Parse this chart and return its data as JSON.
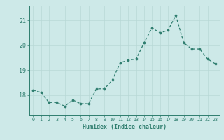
{
  "x": [
    0,
    1,
    2,
    3,
    4,
    5,
    6,
    7,
    8,
    9,
    10,
    11,
    12,
    13,
    14,
    15,
    16,
    17,
    18,
    19,
    20,
    21,
    22,
    23
  ],
  "y": [
    18.2,
    18.1,
    17.7,
    17.7,
    17.55,
    17.8,
    17.65,
    17.65,
    18.25,
    18.25,
    18.6,
    19.3,
    19.4,
    19.45,
    20.1,
    20.7,
    20.5,
    20.6,
    21.2,
    20.1,
    19.85,
    19.85,
    19.45,
    19.25
  ],
  "line_color": "#2e7d6e",
  "marker_color": "#2e7d6e",
  "bg_color": "#cde9e8",
  "grid_color": "#b8d8d6",
  "axis_color": "#2e7d6e",
  "xlabel": "Humidex (Indice chaleur)",
  "yticks": [
    18,
    19,
    20,
    21
  ],
  "ylim": [
    17.2,
    21.6
  ],
  "xlim": [
    -0.5,
    23.5
  ],
  "xticks": [
    0,
    1,
    2,
    3,
    4,
    5,
    6,
    7,
    8,
    9,
    10,
    11,
    12,
    13,
    14,
    15,
    16,
    17,
    18,
    19,
    20,
    21,
    22,
    23
  ]
}
